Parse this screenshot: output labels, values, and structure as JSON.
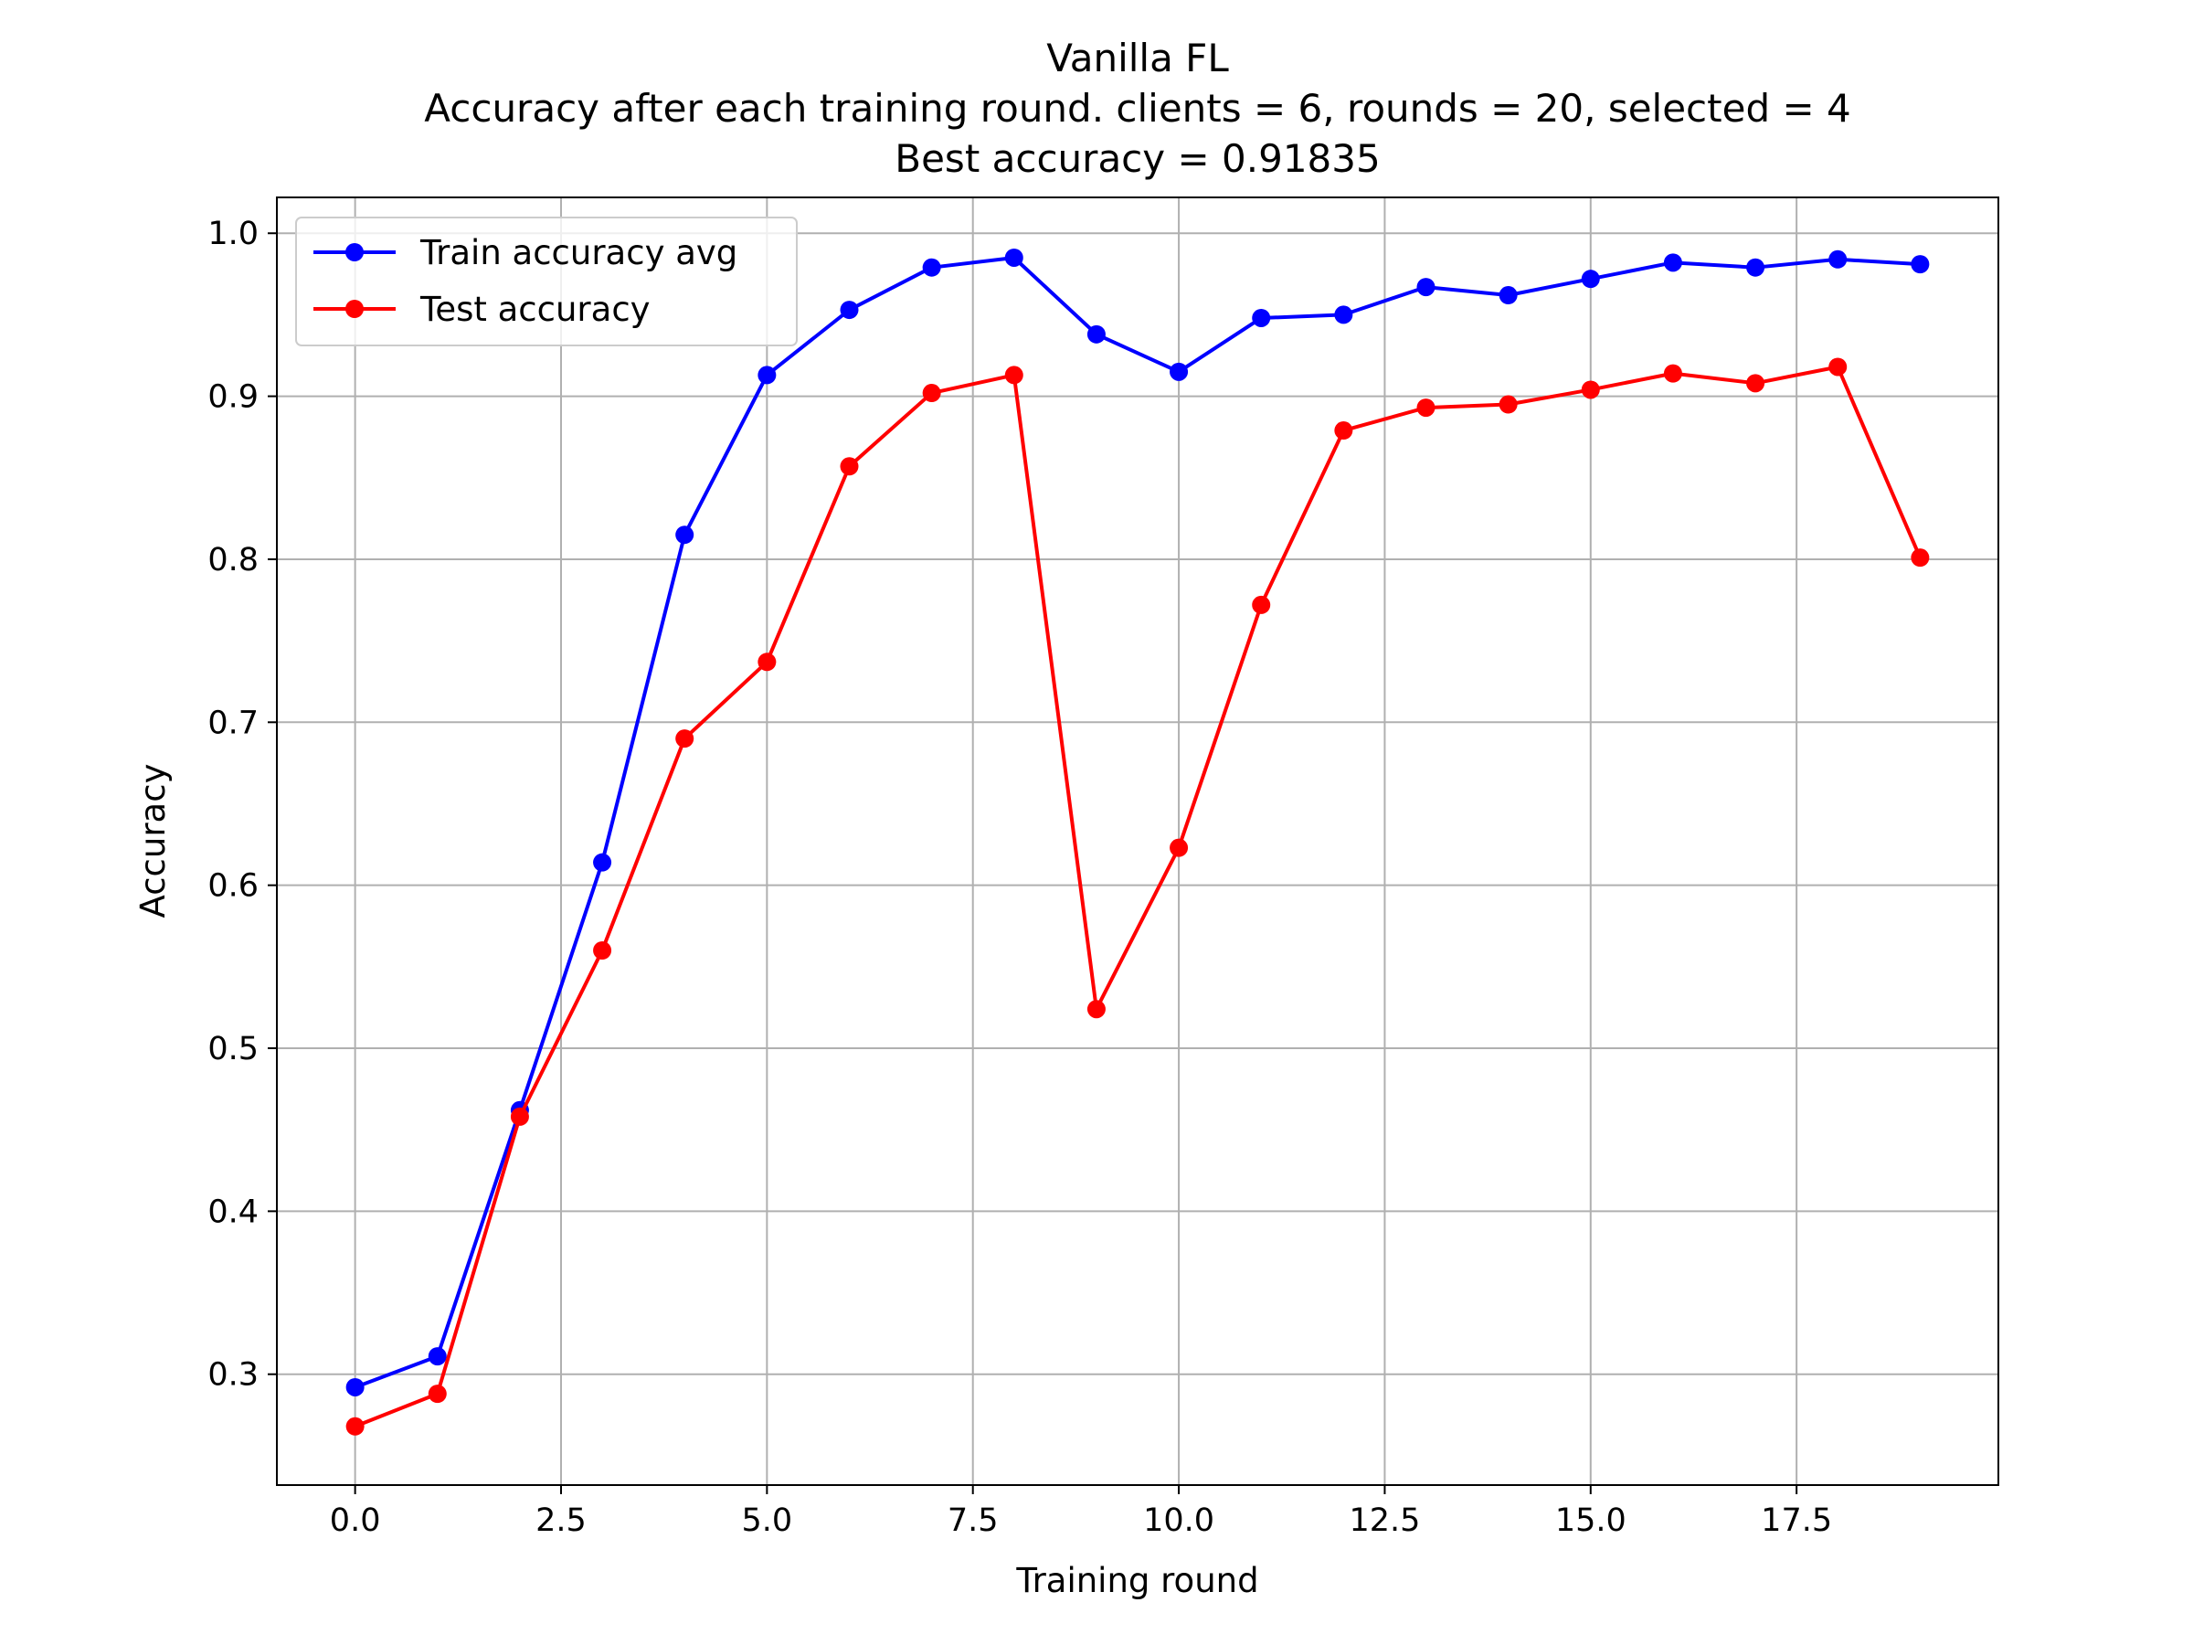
{
  "chart_data": {
    "type": "line",
    "title": "Vanilla FL",
    "subtitle_lines": [
      "Accuracy after each training round. clients = 6, rounds = 20, selected = 4",
      "Best accuracy = 0.91835"
    ],
    "xlabel": "Training round",
    "ylabel": "Accuracy",
    "xlim": [
      -0.95,
      19.95
    ],
    "ylim": [
      0.232,
      1.022
    ],
    "xticks": [
      0.0,
      2.5,
      5.0,
      7.5,
      10.0,
      12.5,
      15.0,
      17.5
    ],
    "xtick_labels": [
      "0.0",
      "2.5",
      "5.0",
      "7.5",
      "10.0",
      "12.5",
      "15.0",
      "17.5"
    ],
    "yticks": [
      0.3,
      0.4,
      0.5,
      0.6,
      0.7,
      0.8,
      0.9,
      1.0
    ],
    "ytick_labels": [
      "0.3",
      "0.4",
      "0.5",
      "0.6",
      "0.7",
      "0.8",
      "0.9",
      "1.0"
    ],
    "grid": true,
    "legend_position": "top-left",
    "x": [
      0,
      1,
      2,
      3,
      4,
      5,
      6,
      7,
      8,
      9,
      10,
      11,
      12,
      13,
      14,
      15,
      16,
      17,
      18,
      19
    ],
    "series": [
      {
        "name": "Train accuracy avg",
        "color": "#0000ff",
        "values": [
          0.292,
          0.311,
          0.462,
          0.614,
          0.815,
          0.913,
          0.953,
          0.979,
          0.985,
          0.938,
          0.915,
          0.948,
          0.95,
          0.967,
          0.962,
          0.972,
          0.982,
          0.979,
          0.984,
          0.981
        ]
      },
      {
        "name": "Test accuracy",
        "color": "#ff0000",
        "values": [
          0.268,
          0.288,
          0.458,
          0.56,
          0.69,
          0.737,
          0.857,
          0.902,
          0.913,
          0.524,
          0.623,
          0.772,
          0.879,
          0.893,
          0.895,
          0.904,
          0.914,
          0.908,
          0.918,
          0.801
        ]
      }
    ]
  }
}
